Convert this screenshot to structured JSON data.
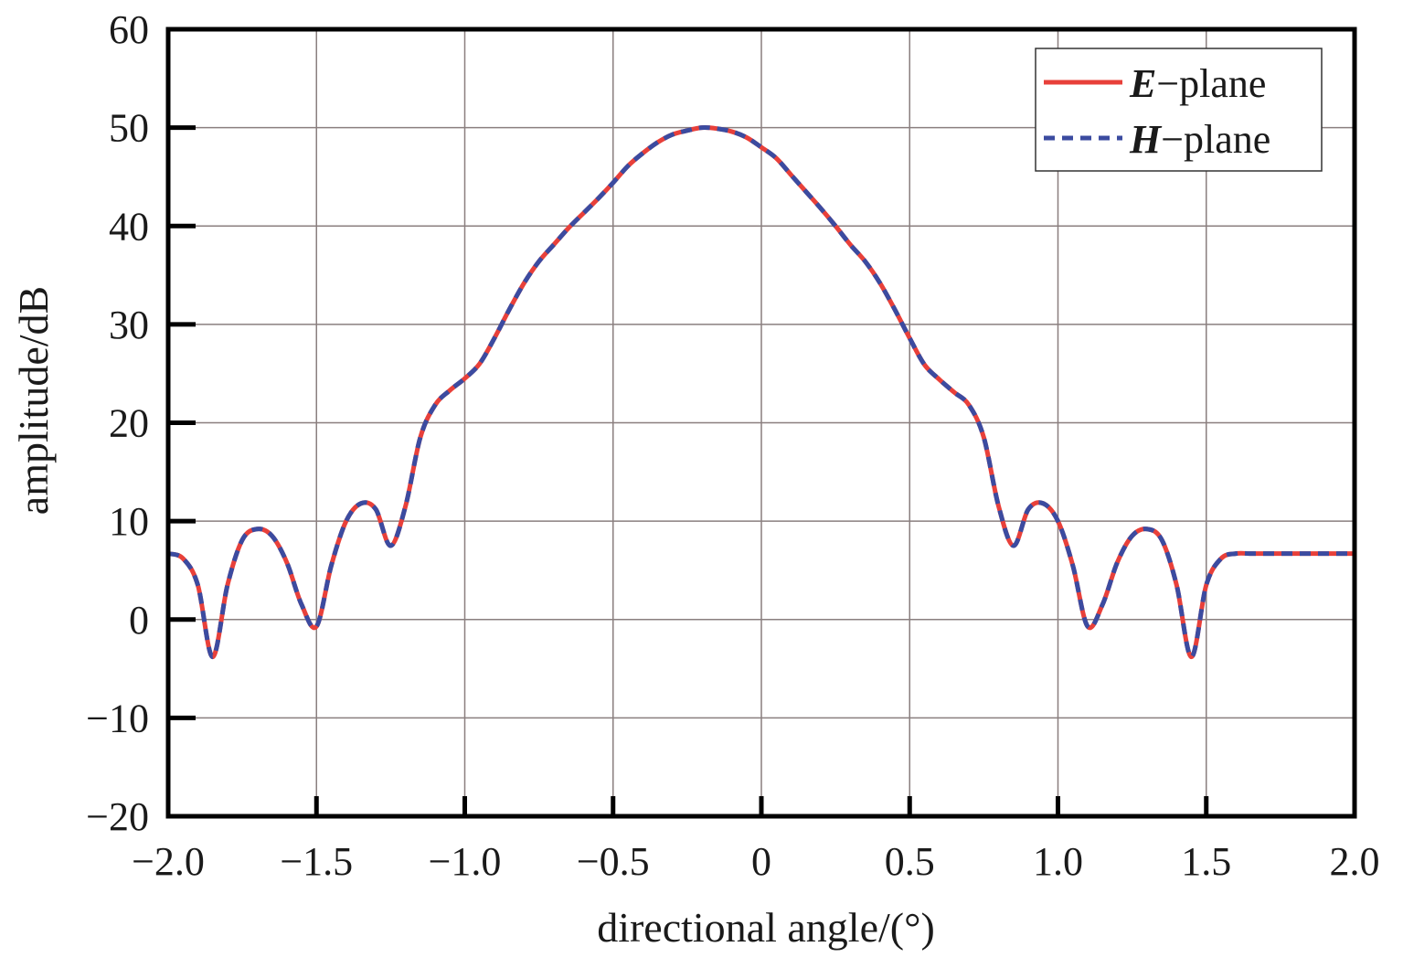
{
  "chart_data": {
    "type": "line",
    "title": "",
    "xlabel": "directional angle/(°)",
    "ylabel": "amplitude/dB",
    "xlim": [
      -2.0,
      2.0
    ],
    "ylim": [
      -20,
      60
    ],
    "x_ticks": [
      -2.0,
      -1.5,
      -1.0,
      -0.5,
      0,
      0.5,
      1.0,
      1.5,
      2.0
    ],
    "x_tick_labels": [
      "−2.0",
      "−1.5",
      "−1.0",
      "−0.5",
      "0",
      "0.5",
      "1.0",
      "1.5",
      "2.0"
    ],
    "y_ticks": [
      -20,
      -10,
      0,
      10,
      20,
      30,
      40,
      50,
      60
    ],
    "y_tick_labels": [
      "−20",
      "−10",
      "0",
      "10",
      "20",
      "30",
      "40",
      "50",
      "60"
    ],
    "grid": true,
    "legend_position": "top-right",
    "series": [
      {
        "name": "E-plane",
        "legend_symbol": "E",
        "legend_suffix": "−plane",
        "color": "#e8403a",
        "style": "solid",
        "x": [
          -2.0,
          -1.95,
          -1.9,
          -1.85,
          -1.8,
          -1.75,
          -1.7,
          -1.65,
          -1.6,
          -1.55,
          -1.5,
          -1.45,
          -1.4,
          -1.35,
          -1.3,
          -1.25,
          -1.2,
          -1.15,
          -1.1,
          -1.05,
          -1.0,
          -0.95,
          -0.9,
          -0.85,
          -0.8,
          -0.75,
          -0.7,
          -0.65,
          -0.6,
          -0.55,
          -0.5,
          -0.45,
          -0.4,
          -0.35,
          -0.3,
          -0.25,
          -0.2,
          -0.15,
          -0.1,
          -0.05,
          0,
          0.05,
          0.1,
          0.15,
          0.2,
          0.25,
          0.3,
          0.35,
          0.4,
          0.45,
          0.5,
          0.55,
          0.6,
          0.65,
          0.7,
          0.75,
          0.8,
          0.85,
          0.9,
          0.95,
          1.0,
          1.05,
          1.1,
          1.15,
          1.2,
          1.25,
          1.3,
          1.35,
          1.4,
          1.45,
          1.5,
          1.55,
          1.6,
          1.65,
          1.7,
          1.75,
          1.8,
          1.85,
          1.9,
          1.95,
          2.0
        ],
        "y": [
          6.7,
          6.2,
          3.5,
          -3.8,
          3.5,
          8.1,
          9.2,
          8.5,
          5.8,
          1.5,
          -0.7,
          5.5,
          10.0,
          11.8,
          11.2,
          7.5,
          11.5,
          18.5,
          21.8,
          23.3,
          24.5,
          26.0,
          28.6,
          31.5,
          34.2,
          36.4,
          38.1,
          39.8,
          41.3,
          42.8,
          44.4,
          46.1,
          47.4,
          48.5,
          49.3,
          49.7,
          50.0,
          49.9,
          49.6,
          49.0,
          48.0,
          46.9,
          45.2,
          43.5,
          41.8,
          40.0,
          38.1,
          36.4,
          34.2,
          31.5,
          28.6,
          25.9,
          24.4,
          23.1,
          21.8,
          18.5,
          11.5,
          7.5,
          11.2,
          11.8,
          10.0,
          5.5,
          -0.7,
          1.5,
          5.8,
          8.5,
          9.2,
          8.1,
          3.5,
          -3.8,
          3.5,
          6.2,
          6.7,
          6.7,
          6.7,
          6.7,
          6.7,
          6.7,
          6.7,
          6.7,
          6.7
        ]
      },
      {
        "name": "H-plane",
        "legend_symbol": "H",
        "legend_suffix": "−plane",
        "color": "#3b4ba0",
        "style": "dashed",
        "x": [
          -2.0,
          -1.95,
          -1.9,
          -1.85,
          -1.8,
          -1.75,
          -1.7,
          -1.65,
          -1.6,
          -1.55,
          -1.5,
          -1.45,
          -1.4,
          -1.35,
          -1.3,
          -1.25,
          -1.2,
          -1.15,
          -1.1,
          -1.05,
          -1.0,
          -0.95,
          -0.9,
          -0.85,
          -0.8,
          -0.75,
          -0.7,
          -0.65,
          -0.6,
          -0.55,
          -0.5,
          -0.45,
          -0.4,
          -0.35,
          -0.3,
          -0.25,
          -0.2,
          -0.15,
          -0.1,
          -0.05,
          0,
          0.05,
          0.1,
          0.15,
          0.2,
          0.25,
          0.3,
          0.35,
          0.4,
          0.45,
          0.5,
          0.55,
          0.6,
          0.65,
          0.7,
          0.75,
          0.8,
          0.85,
          0.9,
          0.95,
          1.0,
          1.05,
          1.1,
          1.15,
          1.2,
          1.25,
          1.3,
          1.35,
          1.4,
          1.45,
          1.5,
          1.55,
          1.6,
          1.65,
          1.7,
          1.75,
          1.8,
          1.85,
          1.9,
          1.95,
          2.0
        ],
        "y": [
          6.7,
          6.2,
          3.5,
          -3.8,
          3.5,
          8.1,
          9.2,
          8.5,
          5.8,
          1.5,
          -0.7,
          5.5,
          10.0,
          11.8,
          11.2,
          7.5,
          11.5,
          18.5,
          21.8,
          23.3,
          24.5,
          26.0,
          28.6,
          31.5,
          34.2,
          36.4,
          38.1,
          39.8,
          41.3,
          42.8,
          44.4,
          46.1,
          47.4,
          48.5,
          49.3,
          49.7,
          50.0,
          49.9,
          49.6,
          49.0,
          48.0,
          46.9,
          45.2,
          43.5,
          41.8,
          40.0,
          38.1,
          36.4,
          34.2,
          31.5,
          28.6,
          25.9,
          24.4,
          23.1,
          21.8,
          18.5,
          11.5,
          7.5,
          11.2,
          11.8,
          10.0,
          5.5,
          -0.7,
          1.5,
          5.8,
          8.5,
          9.2,
          8.1,
          3.5,
          -3.8,
          3.5,
          6.2,
          6.7,
          6.7,
          6.7,
          6.7,
          6.7,
          6.7,
          6.7,
          6.7,
          6.7
        ]
      }
    ]
  }
}
